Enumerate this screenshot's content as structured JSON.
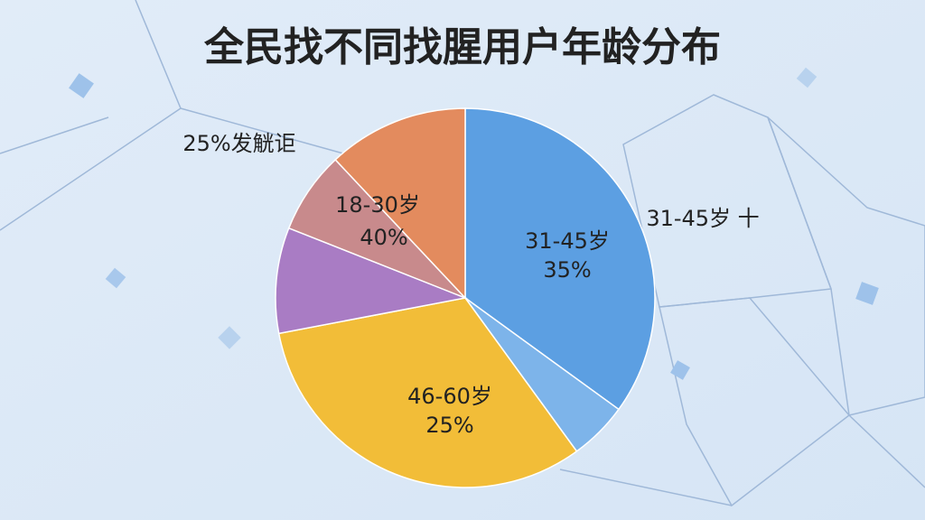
{
  "chart_data": {
    "type": "pie",
    "title": "全民找不同找腥用户年龄分布",
    "categories": [
      null,
      null,
      null,
      null,
      null,
      null
    ],
    "values": [
      35,
      5,
      32,
      9,
      7,
      12
    ],
    "colors": [
      "#5c9fe2",
      "#7db4ea",
      "#f2bd38",
      "#a97cc4",
      "#c88a8c",
      "#e38b5e"
    ],
    "annotations": [
      "25%发觥讵",
      "18-30岁",
      "40%",
      "31-45岁",
      "35%",
      "46-60岁",
      "25%",
      "31-45岁 十"
    ]
  }
}
